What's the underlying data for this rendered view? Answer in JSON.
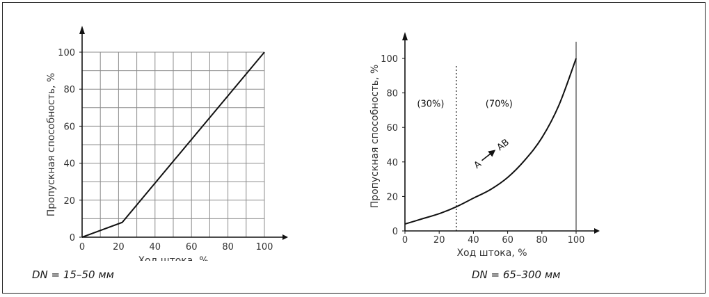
{
  "figure": {
    "left_caption": "DN = 15–50 мм",
    "right_caption": "DN = 65–300 мм"
  },
  "chart_data": [
    {
      "type": "line",
      "xlabel": "Ход штока, %",
      "ylabel": "Пропускная способность, %",
      "xlim": [
        0,
        100
      ],
      "ylim": [
        0,
        100
      ],
      "x_ticks": [
        0,
        20,
        40,
        60,
        80,
        100
      ],
      "y_ticks": [
        0,
        20,
        40,
        60,
        80,
        100
      ],
      "grid": true,
      "series": [
        {
          "x": [
            0,
            22,
            100
          ],
          "y": [
            0,
            8,
            100
          ]
        }
      ]
    },
    {
      "type": "line",
      "xlabel": "Ход штока, %",
      "ylabel": "Пропускная способность, %",
      "xlim": [
        0,
        100
      ],
      "ylim": [
        0,
        100
      ],
      "x_ticks": [
        0,
        20,
        40,
        60,
        80,
        100
      ],
      "y_ticks": [
        0,
        20,
        40,
        60,
        80,
        100
      ],
      "grid": false,
      "series": [
        {
          "x": [
            0,
            10,
            20,
            30,
            40,
            50,
            60,
            70,
            80,
            90,
            100
          ],
          "y": [
            4,
            7,
            10,
            14,
            19,
            24,
            31,
            41,
            54,
            73,
            100
          ]
        }
      ],
      "region_divider_x": 30,
      "annotations": {
        "left_region": "(30%)",
        "right_region": "(70%)",
        "flow_from": "A",
        "flow_to": "AB"
      }
    }
  ]
}
